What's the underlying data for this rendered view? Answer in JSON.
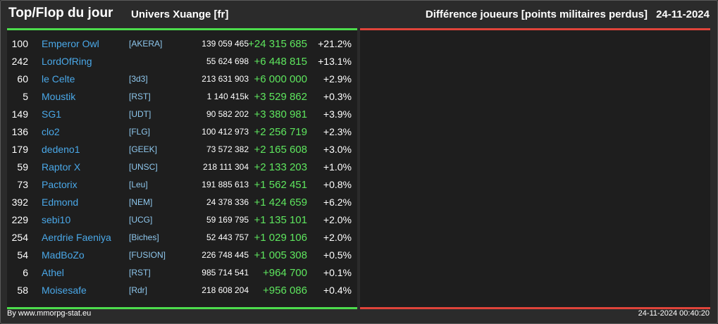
{
  "header": {
    "title": "Top/Flop du jour",
    "universe": "Univers Xuange [fr]",
    "category": "Différence joueurs [points militaires perdus]",
    "date": "24-11-2024"
  },
  "colors": {
    "accent_top": "#4cdc4c",
    "accent_flop": "#e0443a",
    "name": "#4aa8e8"
  },
  "top_rows": [
    {
      "rank": "100",
      "name": "Emperor Owl",
      "guild": "[AKERA]",
      "points": "139 059 465",
      "diff": "+24 315 685",
      "pct": "+21.2%"
    },
    {
      "rank": "242",
      "name": "LordOfRing",
      "guild": "",
      "points": "55 624 698",
      "diff": "+6 448 815",
      "pct": "+13.1%"
    },
    {
      "rank": "60",
      "name": "le Celte",
      "guild": "[3d3]",
      "points": "213 631 903",
      "diff": "+6 000 000",
      "pct": "+2.9%"
    },
    {
      "rank": "5",
      "name": "Moustik",
      "guild": "[RST]",
      "points": "1 140 415k",
      "diff": "+3 529 862",
      "pct": "+0.3%"
    },
    {
      "rank": "149",
      "name": "SG1",
      "guild": "[UDT]",
      "points": "90 582 202",
      "diff": "+3 380 981",
      "pct": "+3.9%"
    },
    {
      "rank": "136",
      "name": "clo2",
      "guild": "[FLG]",
      "points": "100 412 973",
      "diff": "+2 256 719",
      "pct": "+2.3%"
    },
    {
      "rank": "179",
      "name": "dedeno1",
      "guild": "[GEEK]",
      "points": "73 572 382",
      "diff": "+2 165 608",
      "pct": "+3.0%"
    },
    {
      "rank": "59",
      "name": "Raptor X",
      "guild": "[UNSC]",
      "points": "218 111 304",
      "diff": "+2 133 203",
      "pct": "+1.0%"
    },
    {
      "rank": "73",
      "name": "Pactorix",
      "guild": "[Leu]",
      "points": "191 885 613",
      "diff": "+1 562 451",
      "pct": "+0.8%"
    },
    {
      "rank": "392",
      "name": "Edmond",
      "guild": "[NEM]",
      "points": "24 378 336",
      "diff": "+1 424 659",
      "pct": "+6.2%"
    },
    {
      "rank": "229",
      "name": "sebi10",
      "guild": "[UCG]",
      "points": "59 169 795",
      "diff": "+1 135 101",
      "pct": "+2.0%"
    },
    {
      "rank": "254",
      "name": "Aerdrie Faeniya",
      "guild": "[Biches]",
      "points": "52 443 757",
      "diff": "+1 029 106",
      "pct": "+2.0%"
    },
    {
      "rank": "54",
      "name": "MadBoZo",
      "guild": "[FUSION]",
      "points": "226 748 445",
      "diff": "+1 005 308",
      "pct": "+0.5%"
    },
    {
      "rank": "6",
      "name": "Athel",
      "guild": "[RST]",
      "points": "985 714 541",
      "diff": "+964 700",
      "pct": "+0.1%"
    },
    {
      "rank": "58",
      "name": "Moisesafe",
      "guild": "[Rdr]",
      "points": "218 608 204",
      "diff": "+956 086",
      "pct": "+0.4%"
    }
  ],
  "footer": {
    "credit": "By www.mmorpg-stat.eu",
    "timestamp": "24-11-2024 00:40:20"
  }
}
